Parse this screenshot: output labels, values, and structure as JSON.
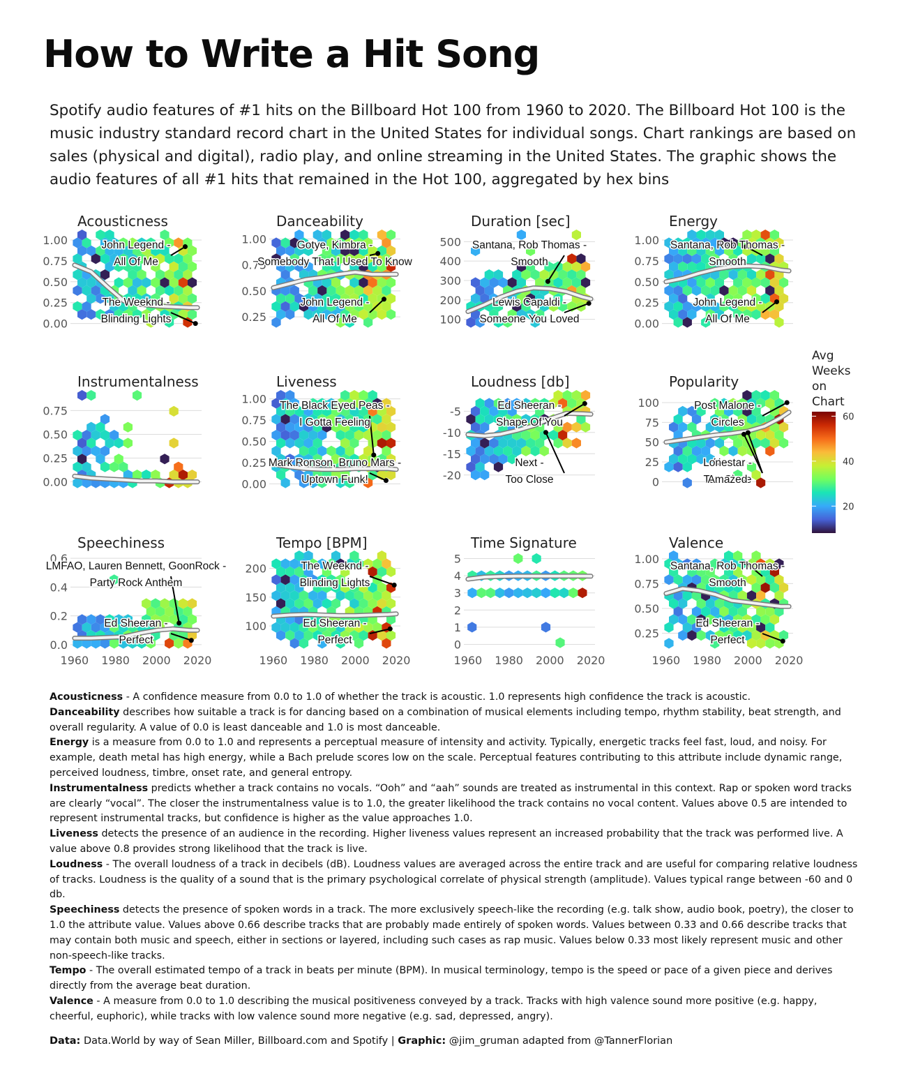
{
  "title": "How to Write a Hit Song",
  "subtitle": "Spotify audio features of #1 hits on the Billboard Hot 100 from 1960 to 2020. The Billboard Hot 100 is the music industry standard record chart in the United States for individual songs. Chart rankings are based on sales (physical and digital), radio play, and online streaming in the United States. The graphic shows the audio features of all #1 hits that remained in the Hot 100, aggregated by hex bins",
  "chart_data": {
    "type": "heatmap",
    "description_kind": "hexbin small multiples with smoothed trend line",
    "x_ticks": [
      "1960",
      "1980",
      "2000",
      "2020"
    ],
    "x_range": [
      1958,
      2022
    ],
    "legend": {
      "title_lines": [
        "Avg",
        "Weeks",
        "on",
        "Chart"
      ],
      "ticks": [
        "20",
        "40",
        "60"
      ],
      "range": [
        8,
        62
      ],
      "colors": [
        "#30123b",
        "#4662d7",
        "#36aaf9",
        "#1ae4b6",
        "#72fe5e",
        "#c7ef34",
        "#fabb39",
        "#f66b19",
        "#cb2a04",
        "#7a0403"
      ]
    },
    "panels": [
      {
        "name": "Acousticness",
        "ylim": [
          -0.02,
          1.05
        ],
        "yticks": [
          0,
          0.25,
          0.5,
          0.75,
          1.0
        ],
        "ytick_labels": [
          "0.00",
          "0.25",
          "0.50",
          "0.75",
          "1.00"
        ],
        "trend": [
          [
            1960,
            0.7
          ],
          [
            1968,
            0.62
          ],
          [
            1976,
            0.44
          ],
          [
            1984,
            0.27
          ],
          [
            1992,
            0.23
          ],
          [
            2000,
            0.21
          ],
          [
            2008,
            0.2
          ],
          [
            2016,
            0.19
          ],
          [
            2020,
            0.19
          ]
        ],
        "annotations": [
          {
            "label": "John Legend -\nAll Of Me",
            "px": 2014,
            "py": 0.92
          },
          {
            "label": "The Weeknd -\nBlinding Lights",
            "px": 2019,
            "py": 0.0
          }
        ]
      },
      {
        "name": "Danceability",
        "ylim": [
          0.17,
          1.03
        ],
        "yticks": [
          0.25,
          0.5,
          0.75,
          1.0
        ],
        "ytick_labels": [
          "0.25",
          "0.50",
          "0.75",
          "1.00"
        ],
        "trend": [
          [
            1960,
            0.53
          ],
          [
            1968,
            0.57
          ],
          [
            1976,
            0.61
          ],
          [
            1984,
            0.63
          ],
          [
            1992,
            0.66
          ],
          [
            2000,
            0.68
          ],
          [
            2008,
            0.66
          ],
          [
            2016,
            0.66
          ],
          [
            2020,
            0.66
          ]
        ],
        "annotations": [
          {
            "label": "Gotye, Kimbra -\nSomebody That I Used To Know",
            "px": 2011,
            "py": 0.86
          },
          {
            "label": "John Legend -\nAll Of Me",
            "px": 2014,
            "py": 0.42
          }
        ]
      },
      {
        "name": "Duration [sec]",
        "ylim": [
          70,
          530
        ],
        "yticks": [
          100,
          200,
          300,
          400,
          500
        ],
        "ytick_labels": [
          "100",
          "200",
          "300",
          "400",
          "500"
        ],
        "trend": [
          [
            1960,
            140
          ],
          [
            1968,
            175
          ],
          [
            1976,
            215
          ],
          [
            1984,
            245
          ],
          [
            1992,
            262
          ],
          [
            2000,
            258
          ],
          [
            2008,
            243
          ],
          [
            2016,
            215
          ],
          [
            2020,
            205
          ]
        ],
        "annotations": [
          {
            "label": "Santana, Rob Thomas -\nSmooth",
            "px": 1999,
            "py": 295
          },
          {
            "label": "Lewis Capaldi -\nSomeone You Loved",
            "px": 2019,
            "py": 182
          }
        ]
      },
      {
        "name": "Energy",
        "ylim": [
          -0.02,
          1.05
        ],
        "yticks": [
          0,
          0.25,
          0.5,
          0.75,
          1.0
        ],
        "ytick_labels": [
          "0.00",
          "0.25",
          "0.50",
          "0.75",
          "1.00"
        ],
        "trend": [
          [
            1960,
            0.5
          ],
          [
            1968,
            0.54
          ],
          [
            1976,
            0.6
          ],
          [
            1984,
            0.65
          ],
          [
            1992,
            0.68
          ],
          [
            2000,
            0.69
          ],
          [
            2008,
            0.68
          ],
          [
            2016,
            0.64
          ],
          [
            2020,
            0.63
          ]
        ],
        "annotations": [
          {
            "label": "Santana, Rob Thomas -\nSmooth",
            "px": 1999,
            "py": 0.92
          },
          {
            "label": "John Legend -\nAll Of Me",
            "px": 2014,
            "py": 0.26
          }
        ]
      },
      {
        "name": "Instrumentalness",
        "ylim": [
          -0.04,
          0.9
        ],
        "yticks": [
          0,
          0.25,
          0.5,
          0.75
        ],
        "ytick_labels": [
          "0.00",
          "0.25",
          "0.50",
          "0.75"
        ],
        "trend": [
          [
            1960,
            0.06
          ],
          [
            1968,
            0.04
          ],
          [
            1976,
            0.03
          ],
          [
            1984,
            0.02
          ],
          [
            1992,
            0.01
          ],
          [
            2000,
            0.01
          ],
          [
            2008,
            0.0
          ],
          [
            2016,
            0.0
          ],
          [
            2020,
            0.0
          ]
        ],
        "annotations": []
      },
      {
        "name": "Liveness",
        "ylim": [
          -0.02,
          1.03
        ],
        "yticks": [
          0,
          0.25,
          0.5,
          0.75,
          1.0
        ],
        "ytick_labels": [
          "0.00",
          "0.25",
          "0.50",
          "0.75",
          "1.00"
        ],
        "trend": [
          [
            1960,
            0.23
          ],
          [
            1968,
            0.2
          ],
          [
            1976,
            0.18
          ],
          [
            1984,
            0.17
          ],
          [
            1992,
            0.17
          ],
          [
            2000,
            0.18
          ],
          [
            2008,
            0.18
          ],
          [
            2016,
            0.18
          ],
          [
            2020,
            0.17
          ]
        ],
        "annotations": [
          {
            "label": "The Black Eyed Peas -\nI Gotta Feeling",
            "px": 2009,
            "py": 0.34
          },
          {
            "label": "Mark Ronson, Bruno Mars -\nUptown Funk!",
            "px": 2015,
            "py": 0.04
          }
        ]
      },
      {
        "name": "Loudness [db]",
        "ylim": [
          -22.5,
          -1.5
        ],
        "yticks": [
          -20,
          -15,
          -10,
          -5
        ],
        "ytick_labels": [
          "-20",
          "-15",
          "-10",
          "-5"
        ],
        "trend": [
          [
            1960,
            -10.5
          ],
          [
            1968,
            -10.8
          ],
          [
            1976,
            -10.4
          ],
          [
            1984,
            -9.5
          ],
          [
            1992,
            -8.4
          ],
          [
            2000,
            -6.8
          ],
          [
            2008,
            -5.5
          ],
          [
            2016,
            -5.6
          ],
          [
            2020,
            -5.7
          ]
        ],
        "annotations": [
          {
            "label": "Ed Sheeran -\nShape Of You",
            "px": 2017,
            "py": -3.2
          },
          {
            "label": "Next -\nToo Close",
            "px": 1998,
            "py": -10
          }
        ]
      },
      {
        "name": "Popularity",
        "ylim": [
          -5,
          108
        ],
        "yticks": [
          0,
          25,
          50,
          75,
          100
        ],
        "ytick_labels": [
          "0",
          "25",
          "50",
          "75",
          "100"
        ],
        "trend": [
          [
            1960,
            50
          ],
          [
            1968,
            53
          ],
          [
            1976,
            56
          ],
          [
            1984,
            59
          ],
          [
            1992,
            61
          ],
          [
            2000,
            64
          ],
          [
            2008,
            70
          ],
          [
            2016,
            81
          ],
          [
            2020,
            88
          ]
        ],
        "annotations": [
          {
            "label": "Post Malone -\nCircles",
            "px": 2019,
            "py": 100
          },
          {
            "label": "Next -\nToo Close",
            "px": 1998,
            "py": 60
          },
          {
            "label": "Lonestar -\nAmazed",
            "px": 2000,
            "py": 62
          }
        ]
      },
      {
        "name": "Speechiness",
        "ylim": [
          -0.01,
          0.61
        ],
        "yticks": [
          0,
          0.2,
          0.4,
          0.6
        ],
        "ytick_labels": [
          "0.0",
          "0.2",
          "0.4",
          "0.6"
        ],
        "trend": [
          [
            1960,
            0.045
          ],
          [
            1968,
            0.045
          ],
          [
            1976,
            0.05
          ],
          [
            1984,
            0.055
          ],
          [
            1992,
            0.08
          ],
          [
            2000,
            0.1
          ],
          [
            2008,
            0.11
          ],
          [
            2016,
            0.1
          ],
          [
            2020,
            0.1
          ]
        ],
        "annotations": [
          {
            "label": "LMFAO, Lauren Bennett, GoonRock -\nParty Rock Anthem",
            "px": 2011,
            "py": 0.15
          },
          {
            "label": "Ed Sheeran -\nPerfect",
            "px": 2017,
            "py": 0.03
          }
        ]
      },
      {
        "name": "Tempo [BPM]",
        "ylim": [
          65,
          220
        ],
        "yticks": [
          100,
          150,
          200
        ],
        "ytick_labels": [
          "100",
          "150",
          "200"
        ],
        "trend": [
          [
            1960,
            117
          ],
          [
            1968,
            119
          ],
          [
            1976,
            120
          ],
          [
            1984,
            119
          ],
          [
            1992,
            118
          ],
          [
            2000,
            118
          ],
          [
            2008,
            119
          ],
          [
            2016,
            120
          ],
          [
            2020,
            121
          ]
        ],
        "annotations": [
          {
            "label": "The Weeknd -\nBlinding Lights",
            "px": 2019,
            "py": 171
          },
          {
            "label": "Ed Sheeran -\nPerfect",
            "px": 2017,
            "py": 95
          }
        ]
      },
      {
        "name": "Time Signature",
        "ylim": [
          -0.1,
          5.1
        ],
        "yticks": [
          0,
          1,
          2,
          3,
          4,
          5
        ],
        "ytick_labels": [
          "0",
          "1",
          "2",
          "3",
          "4",
          "5"
        ],
        "trend": [
          [
            1960,
            3.8
          ],
          [
            1968,
            3.92
          ],
          [
            1976,
            3.96
          ],
          [
            1984,
            3.98
          ],
          [
            1992,
            3.98
          ],
          [
            2000,
            3.98
          ],
          [
            2008,
            3.98
          ],
          [
            2016,
            3.98
          ],
          [
            2020,
            3.97
          ]
        ],
        "annotations": []
      },
      {
        "name": "Valence",
        "ylim": [
          0.12,
          1.02
        ],
        "yticks": [
          0.25,
          0.5,
          0.75,
          1.0
        ],
        "ytick_labels": [
          "0.25",
          "0.50",
          "0.75",
          "1.00"
        ],
        "trend": [
          [
            1960,
            0.65
          ],
          [
            1968,
            0.7
          ],
          [
            1976,
            0.68
          ],
          [
            1984,
            0.64
          ],
          [
            1992,
            0.58
          ],
          [
            2000,
            0.56
          ],
          [
            2008,
            0.54
          ],
          [
            2016,
            0.52
          ],
          [
            2020,
            0.52
          ]
        ],
        "annotations": [
          {
            "label": "Santana, Rob Thomas -\nSmooth",
            "px": 1999,
            "py": 0.96
          },
          {
            "label": "Ed Sheeran -\nPerfect",
            "px": 2017,
            "py": 0.17
          }
        ]
      }
    ]
  },
  "definitions": [
    {
      "term": "Acousticness",
      "text": " - A confidence measure from 0.0 to 1.0 of whether the track is acoustic. 1.0 represents high confidence the track is acoustic."
    },
    {
      "term": "Danceability",
      "text": " describes how suitable a track is for dancing based on a combination of musical elements including tempo, rhythm stability, beat strength, and overall regularity. A value of 0.0 is least danceable and 1.0 is most danceable."
    },
    {
      "term": "Energy",
      "text": " is a measure from 0.0 to 1.0 and represents a perceptual measure of intensity and activity. Typically, energetic tracks feel fast, loud, and noisy. For example, death metal has high energy, while a Bach prelude scores low on the scale. Perceptual features contributing to this attribute include dynamic range, perceived loudness, timbre, onset rate, and general entropy."
    },
    {
      "term": "Instrumentalness",
      "text": " predicts whether a track contains no vocals. “Ooh” and “aah” sounds are treated as instrumental in this context. Rap or spoken word tracks are clearly “vocal”. The closer the instrumentalness value is to 1.0, the greater likelihood the track contains no vocal content. Values above 0.5 are intended to represent instrumental tracks, but confidence is higher as the value approaches 1.0."
    },
    {
      "term": "Liveness",
      "text": " detects the presence of an audience in the recording. Higher liveness values represent an increased probability that the track was performed live. A value above 0.8 provides strong likelihood that the track is live."
    },
    {
      "term": "Loudness",
      "text": " - The overall loudness of a track in decibels (dB). Loudness values are averaged across the entire track and are useful for comparing relative loudness of tracks. Loudness is the quality of a sound that is the primary psychological correlate of physical strength (amplitude). Values typical range between -60 and 0 db."
    },
    {
      "term": "Speechiness",
      "text": " detects the presence of spoken words in a track. The more exclusively speech-like the recording (e.g. talk show, audio book, poetry), the closer to 1.0 the attribute value. Values above 0.66 describe tracks that are probably made entirely of spoken words. Values between 0.33 and 0.66 describe tracks that may contain both music and speech, either in sections or layered, including such cases as rap music. Values below 0.33 most likely represent music and other non-speech-like tracks."
    },
    {
      "term": "Tempo",
      "text": " - The overall estimated tempo of a track in beats per minute (BPM). In musical terminology, tempo is the speed or pace of a given piece and derives directly from the average beat duration."
    },
    {
      "term": "Valence",
      "text": " - A measure from 0.0 to 1.0 describing the musical positiveness conveyed by a track. Tracks with high valence sound more positive (e.g. happy, cheerful, euphoric), while tracks with low valence sound more negative (e.g. sad, depressed, angry)."
    }
  ],
  "credits": {
    "data_label": "Data:",
    "data_text": " Data.World by way of Sean Miller, Billboard.com and Spotify | ",
    "graphic_label": "Graphic:",
    "graphic_text": " @jim_gruman adapted from @TannerFlorian"
  }
}
